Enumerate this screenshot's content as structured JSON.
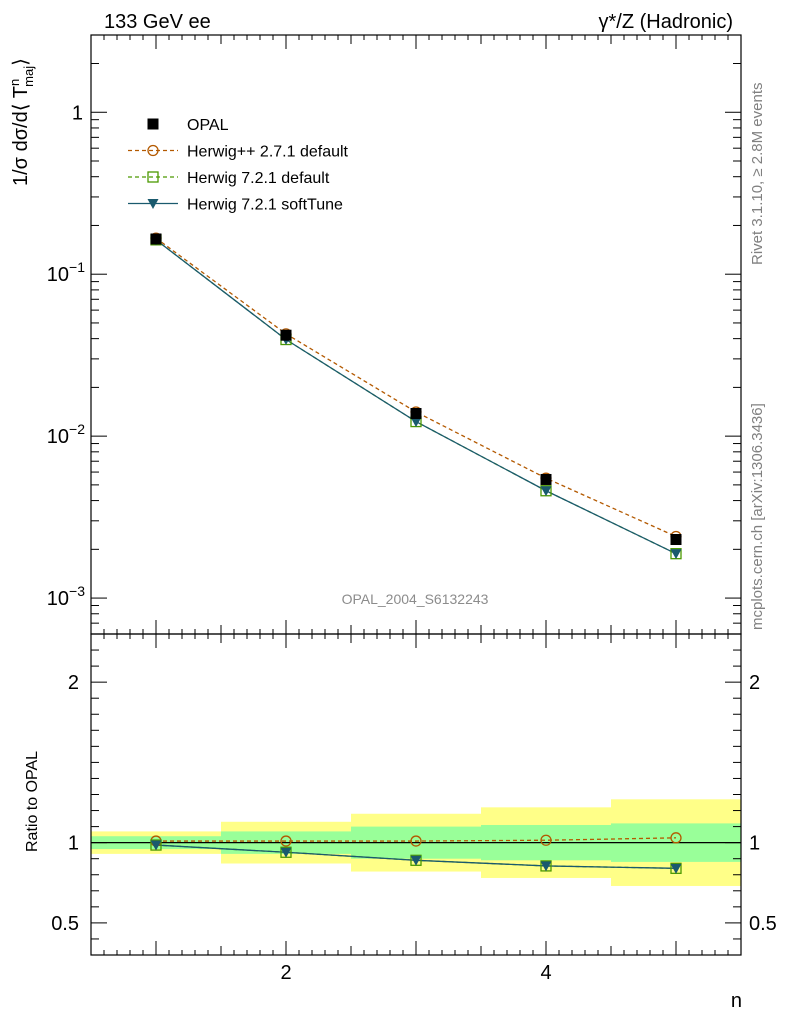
{
  "header": {
    "left": "133 GeV ee",
    "right": "γ*/Z (Hadronic)"
  },
  "side_labels": {
    "rivet": "Rivet 3.1.10, ≥ 2.8M events",
    "mcplots": "mcplots.cern.ch [arXiv:1306.3436]"
  },
  "watermark": "OPAL_2004_S6132243",
  "colors": {
    "data": "#000000",
    "herwigpp": "#b35900",
    "herwig_default": "#4c9900",
    "herwig_softtune": "#1a5a6e",
    "band_inner": "#99ff99",
    "band_outer": "#ffff88"
  },
  "chart_data": [
    {
      "type": "line",
      "panel": "main",
      "ylabel": "1/σ dσ/d⟨ T",
      "ylabel_sup": "n",
      "ylabel_sub": "maj",
      "ylabel_end": "⟩",
      "yscale": "log",
      "xlim": [
        0.5,
        5.5
      ],
      "ylim": [
        0.0006,
        3.0
      ],
      "yticks": [
        {
          "value": 1,
          "label": "1"
        },
        {
          "value": 0.1,
          "label": "10",
          "exp": "−1"
        },
        {
          "value": 0.01,
          "label": "10",
          "exp": "−2"
        },
        {
          "value": 0.001,
          "label": "10",
          "exp": "−3"
        }
      ],
      "legend_position": "top-left",
      "series": [
        {
          "name": "OPAL",
          "marker": "square-filled",
          "line": "none",
          "x": [
            1,
            2,
            3,
            4,
            5
          ],
          "y": [
            0.165,
            0.042,
            0.0138,
            0.0054,
            0.0023
          ]
        },
        {
          "name": "Herwig++ 2.7.1 default",
          "marker": "circle-open",
          "line": "dashed",
          "x": [
            1,
            2,
            3,
            4,
            5
          ],
          "y": [
            0.167,
            0.0428,
            0.0141,
            0.0055,
            0.0024
          ]
        },
        {
          "name": "Herwig 7.2.1 default",
          "marker": "square-open",
          "line": "dashed",
          "x": [
            1,
            2,
            3,
            4,
            5
          ],
          "y": [
            0.163,
            0.0395,
            0.0123,
            0.0046,
            0.00188
          ]
        },
        {
          "name": "Herwig 7.2.1 softTune",
          "marker": "triangle-down-filled",
          "line": "solid",
          "x": [
            1,
            2,
            3,
            4,
            5
          ],
          "y": [
            0.163,
            0.0395,
            0.0123,
            0.0046,
            0.00188
          ]
        }
      ]
    },
    {
      "type": "line",
      "panel": "ratio",
      "ylabel": "Ratio to OPAL",
      "xlabel": "n",
      "xlim": [
        0.5,
        5.5
      ],
      "ylim": [
        0.3,
        2.3
      ],
      "xticks": [
        2,
        4
      ],
      "yticks": [
        {
          "value": 0.5,
          "label": "0.5"
        },
        {
          "value": 1,
          "label": "1"
        },
        {
          "value": 2,
          "label": "2"
        }
      ],
      "bands": {
        "x_edges": [
          0.5,
          1.5,
          2.5,
          3.5,
          4.5,
          5.5
        ],
        "inner_low": [
          0.96,
          0.93,
          0.9,
          0.89,
          0.88
        ],
        "inner_high": [
          1.04,
          1.07,
          1.1,
          1.11,
          1.12
        ],
        "outer_low": [
          0.93,
          0.87,
          0.82,
          0.78,
          0.73
        ],
        "outer_high": [
          1.07,
          1.13,
          1.18,
          1.22,
          1.27
        ]
      },
      "series": [
        {
          "name": "Herwig++ 2.7.1 default",
          "marker": "circle-open",
          "line": "dashed",
          "x": [
            1,
            2,
            3,
            4,
            5
          ],
          "y": [
            1.01,
            1.01,
            1.01,
            1.015,
            1.03
          ]
        },
        {
          "name": "Herwig 7.2.1 default",
          "marker": "square-open",
          "line": "dashed",
          "x": [
            1,
            2,
            3,
            4,
            5
          ],
          "y": [
            0.985,
            0.94,
            0.89,
            0.855,
            0.84
          ]
        },
        {
          "name": "Herwig 7.2.1 softTune",
          "marker": "triangle-down-filled",
          "line": "solid",
          "x": [
            1,
            2,
            3,
            4,
            5
          ],
          "y": [
            0.985,
            0.94,
            0.89,
            0.855,
            0.84
          ]
        }
      ]
    }
  ]
}
